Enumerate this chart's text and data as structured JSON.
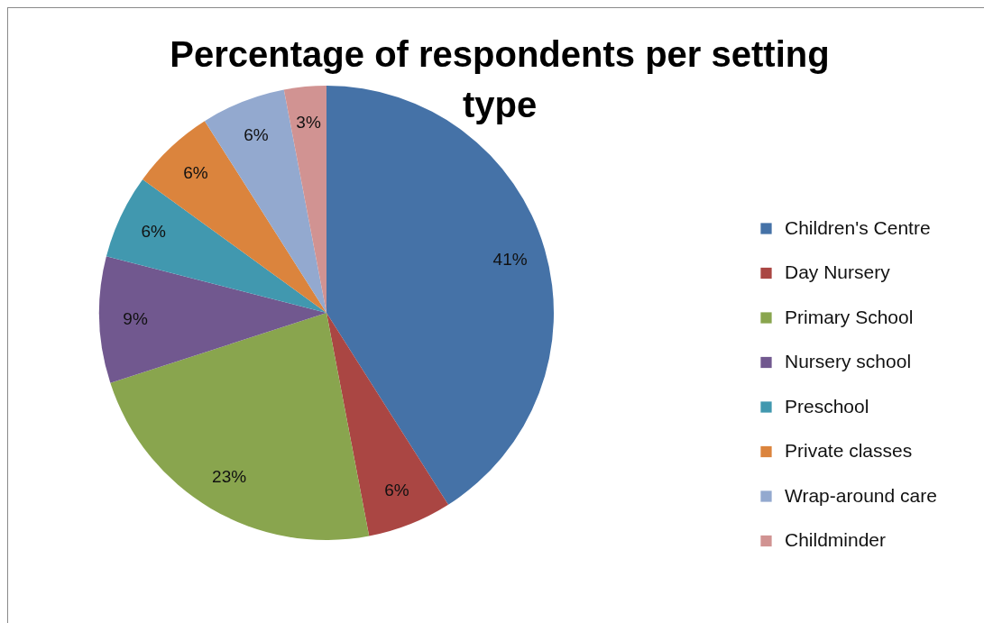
{
  "chart_data": {
    "type": "pie",
    "title": "Percentage of respondents per setting type",
    "categories": [
      "Children's Centre",
      "Day Nursery",
      "Primary School",
      "Nursery school",
      "Preschool",
      "Private classes",
      "Wrap-around care",
      "Childminder"
    ],
    "values": [
      41,
      6,
      23,
      9,
      6,
      6,
      6,
      3
    ],
    "value_labels": [
      "41%",
      "6%",
      "23%",
      "9%",
      "6%",
      "6%",
      "6%",
      "3%"
    ],
    "colors": [
      "#4572a7",
      "#aa4643",
      "#89a54e",
      "#71588f",
      "#4198af",
      "#db843d",
      "#93a9cf",
      "#d19392"
    ],
    "legend": "right"
  }
}
